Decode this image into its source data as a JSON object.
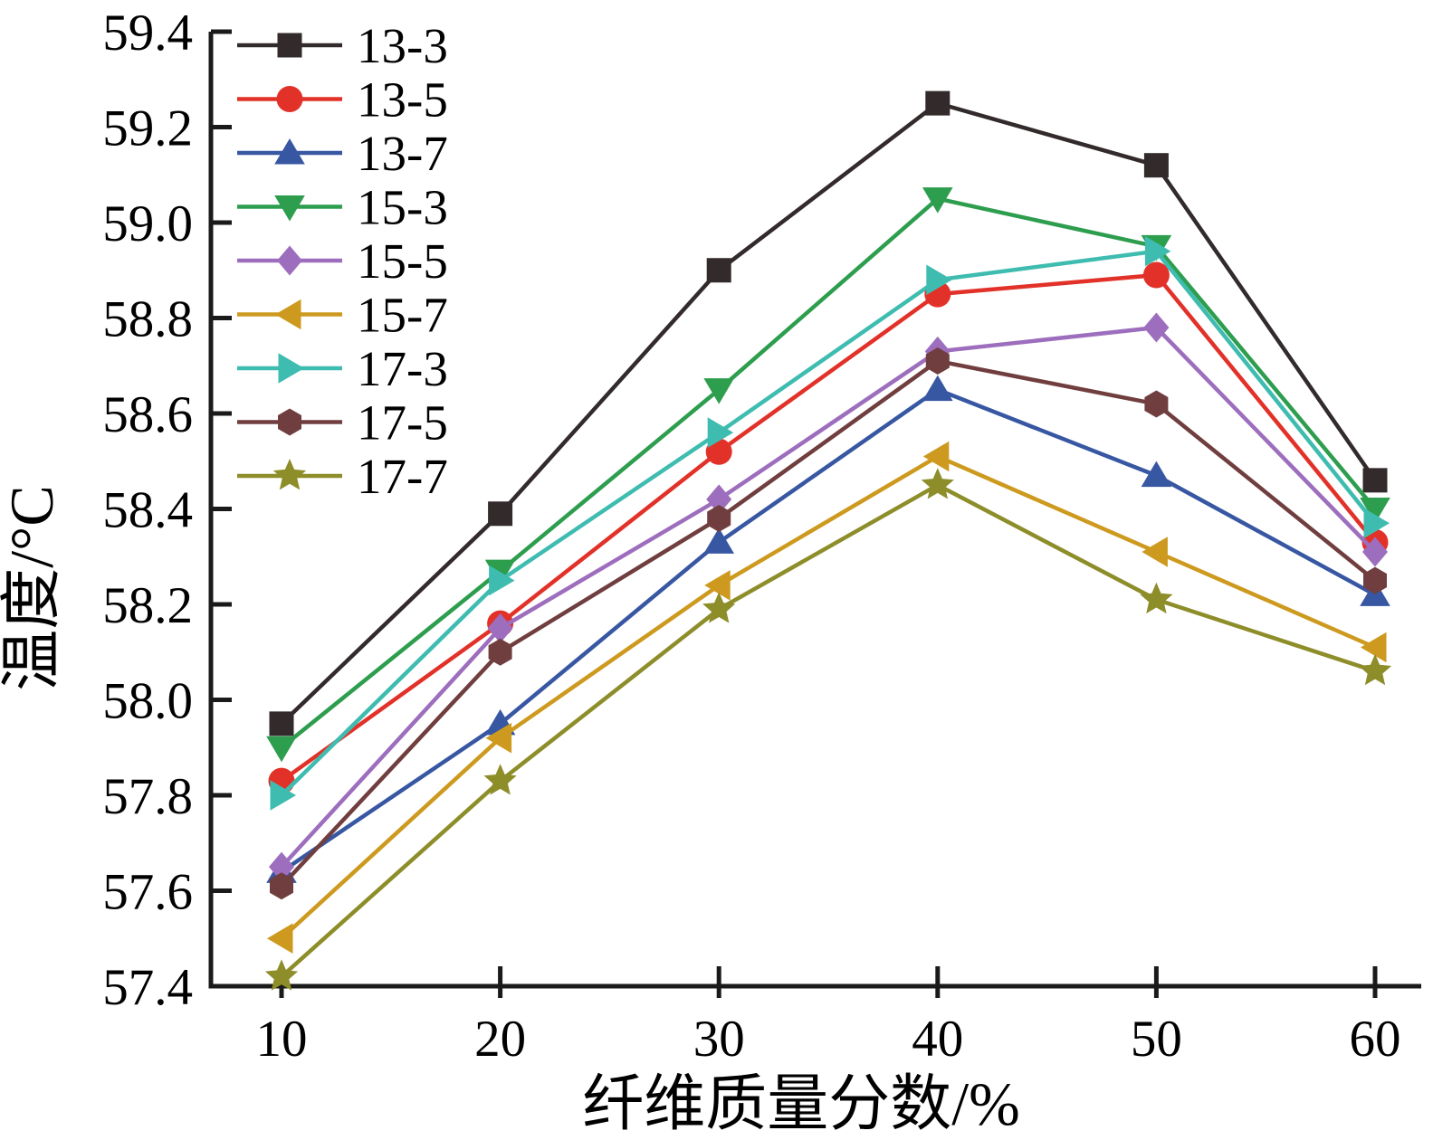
{
  "figure": {
    "background": "#ffffff",
    "axis_color": "#1a1a1a"
  },
  "chart_data": {
    "type": "line",
    "title": "",
    "xlabel": "纤维质量分数/%",
    "ylabel": "温度/°C",
    "x": [
      10,
      20,
      30,
      40,
      50,
      60
    ],
    "x_ticks": [
      "10",
      "20",
      "30",
      "40",
      "50",
      "60"
    ],
    "y_ticks": [
      "57.4",
      "57.6",
      "57.8",
      "58.0",
      "58.2",
      "58.4",
      "58.6",
      "58.8",
      "59.0",
      "59.2",
      "59.4"
    ],
    "ylim": [
      57.4,
      59.4
    ],
    "xlim": [
      10,
      60
    ],
    "grid": false,
    "legend_position": "top-left",
    "series": [
      {
        "name": "13-3",
        "color": "#322a2b",
        "marker": "square",
        "values": [
          57.95,
          58.39,
          58.9,
          59.25,
          59.12,
          58.46
        ]
      },
      {
        "name": "13-5",
        "color": "#e23128",
        "marker": "circle",
        "values": [
          57.83,
          58.16,
          58.52,
          58.85,
          58.89,
          58.33
        ]
      },
      {
        "name": "13-7",
        "color": "#3857a3",
        "marker": "triangle-up",
        "values": [
          57.64,
          57.95,
          58.33,
          58.65,
          58.47,
          58.22
        ]
      },
      {
        "name": "15-3",
        "color": "#2d9d4e",
        "marker": "triangle-down",
        "values": [
          57.9,
          58.27,
          58.65,
          59.05,
          58.95,
          58.4
        ]
      },
      {
        "name": "15-5",
        "color": "#9d6ebd",
        "marker": "diamond",
        "values": [
          57.65,
          58.15,
          58.42,
          58.73,
          58.78,
          58.31
        ]
      },
      {
        "name": "15-7",
        "color": "#cd9a1f",
        "marker": "triangle-left",
        "values": [
          57.5,
          57.92,
          58.24,
          58.51,
          58.31,
          58.11
        ]
      },
      {
        "name": "17-3",
        "color": "#3fbcb0",
        "marker": "triangle-right",
        "values": [
          57.8,
          58.25,
          58.56,
          58.88,
          58.94,
          58.37
        ]
      },
      {
        "name": "17-5",
        "color": "#703e3e",
        "marker": "hexagon",
        "values": [
          57.61,
          58.1,
          58.38,
          58.71,
          58.62,
          58.25
        ]
      },
      {
        "name": "17-7",
        "color": "#8d8d2a",
        "marker": "star",
        "values": [
          57.42,
          57.83,
          58.19,
          58.45,
          58.21,
          58.06
        ]
      }
    ]
  }
}
